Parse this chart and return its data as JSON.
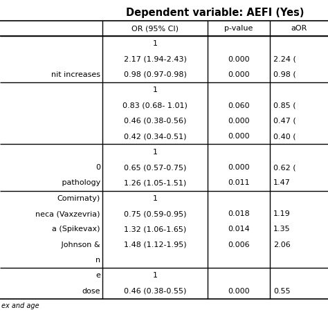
{
  "title": "Dependent variable: AEFI (Yes)",
  "col_headers": [
    "",
    "OR (95% CI)",
    "p-value",
    "aOR"
  ],
  "row_data": [
    [
      "",
      "1",
      "",
      ""
    ],
    [
      "",
      "2.17 (1.94-2.43)",
      "0.000",
      "2.24 ("
    ],
    [
      "nit increases",
      "0.98 (0.97-0.98)",
      "0.000",
      "0.98 ("
    ],
    [
      "",
      "1",
      "",
      ""
    ],
    [
      "",
      "0.83 (0.68- 1.01)",
      "0.060",
      "0.85 ("
    ],
    [
      "",
      "0.46 (0.38-0.56)",
      "0.000",
      "0.47 ("
    ],
    [
      "",
      "0.42 (0.34-0.51)",
      "0.000",
      "0.40 ("
    ],
    [
      "",
      "1",
      "",
      ""
    ],
    [
      "0",
      "0.65 (0.57-0.75)",
      "0.000",
      "0.62 ("
    ],
    [
      " pathology",
      "1.26 (1.05-1.51)",
      "0.011",
      "1.47"
    ],
    [
      "Comirnaty)",
      "1",
      "",
      ""
    ],
    [
      "neca (Vaxzevria)",
      "0.75 (0.59-0.95)",
      "0.018",
      "1.19"
    ],
    [
      "a (Spikevax)",
      "1.32 (1.06-1.65)",
      "0.014",
      "1.35"
    ],
    [
      " Johnson &",
      "1.48 (1.12-1.95)",
      "0.006",
      "2.06"
    ],
    [
      "n",
      "",
      "",
      ""
    ],
    [
      "e",
      "1",
      "",
      ""
    ],
    [
      "dose",
      "0.46 (0.38-0.55)",
      "0.000",
      "0.55"
    ]
  ],
  "section_starts": [
    0,
    3,
    7,
    10,
    15
  ],
  "footer": "ex and age",
  "bg_color": "#ffffff",
  "text_color": "#000000",
  "line_color": "#000000",
  "font_size": 8.0,
  "title_font_size": 10.5
}
